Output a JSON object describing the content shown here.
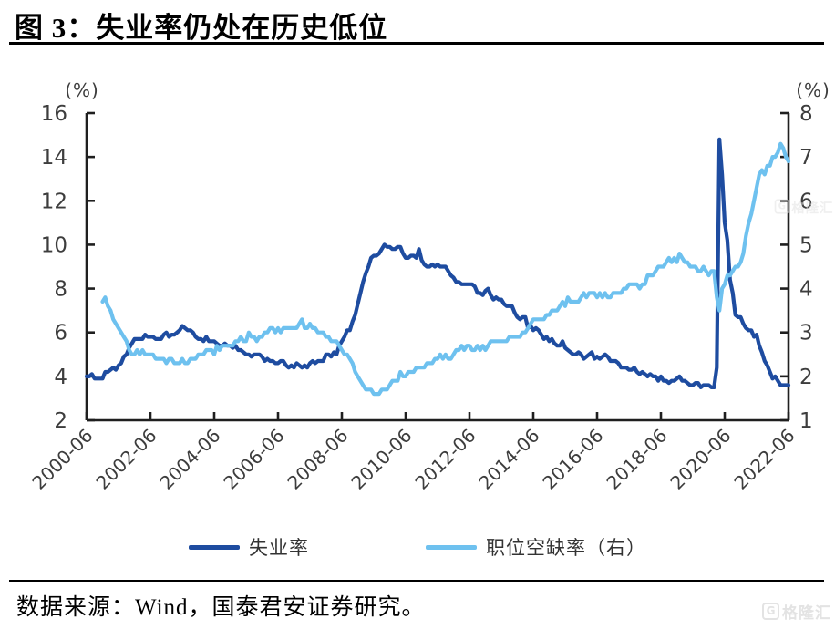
{
  "header": {
    "title": "图 3：失业率仍处在历史低位"
  },
  "source": {
    "text": "数据来源：Wind，国泰君安证券研究。"
  },
  "watermark": {
    "icon_letter": "G",
    "text": "格隆汇"
  },
  "legend": {
    "position": "bottom"
  },
  "chart_data": {
    "type": "line",
    "grid": false,
    "plot_background": "#ffffff",
    "axis_color": "#1f1f1f",
    "tick_label_color": "#3d3d3d",
    "left_axis": {
      "unit": "(%)",
      "min": 2,
      "max": 16,
      "ticks": [
        16,
        14,
        12,
        10,
        8,
        6,
        4,
        2
      ]
    },
    "right_axis": {
      "unit": "(%)",
      "min": 1,
      "max": 8,
      "ticks": [
        8,
        7,
        6,
        5,
        4,
        3,
        2,
        1
      ]
    },
    "x_axis": {
      "start": "2000-06",
      "end": "2022-06",
      "tick_interval_months": 24,
      "tick_labels": [
        "2000-06",
        "2002-06",
        "2004-06",
        "2006-06",
        "2008-06",
        "2010-06",
        "2012-06",
        "2014-06",
        "2016-06",
        "2018-06",
        "2020-06",
        "2022-06"
      ]
    },
    "series": [
      {
        "name": "失业率",
        "axis": "left",
        "color": "#1e4ca0",
        "start": "2000-06",
        "frequency": "monthly",
        "values": [
          4.0,
          4.0,
          4.1,
          3.9,
          3.9,
          3.9,
          3.9,
          4.2,
          4.2,
          4.3,
          4.4,
          4.3,
          4.5,
          4.6,
          4.9,
          5.0,
          5.3,
          5.5,
          5.7,
          5.7,
          5.7,
          5.7,
          5.9,
          5.8,
          5.8,
          5.8,
          5.7,
          5.7,
          5.7,
          5.9,
          6.0,
          5.8,
          5.9,
          5.9,
          6.0,
          6.1,
          6.3,
          6.2,
          6.1,
          6.1,
          6.0,
          5.8,
          5.7,
          5.7,
          5.6,
          5.8,
          5.6,
          5.6,
          5.6,
          5.5,
          5.4,
          5.4,
          5.5,
          5.4,
          5.4,
          5.3,
          5.4,
          5.2,
          5.2,
          5.1,
          5.0,
          5.0,
          4.9,
          5.0,
          5.0,
          5.0,
          4.9,
          4.7,
          4.8,
          4.7,
          4.7,
          4.6,
          4.6,
          4.7,
          4.7,
          4.5,
          4.4,
          4.5,
          4.4,
          4.6,
          4.5,
          4.4,
          4.5,
          4.4,
          4.6,
          4.7,
          4.6,
          4.7,
          4.7,
          4.7,
          5.0,
          5.0,
          4.9,
          5.1,
          5.0,
          5.4,
          5.6,
          5.8,
          6.1,
          6.1,
          6.5,
          6.8,
          7.3,
          7.8,
          8.3,
          8.7,
          9.0,
          9.4,
          9.5,
          9.5,
          9.6,
          9.8,
          10.0,
          9.9,
          9.9,
          9.8,
          9.8,
          9.9,
          9.9,
          9.6,
          9.4,
          9.4,
          9.5,
          9.5,
          9.4,
          9.8,
          9.3,
          9.1,
          9.0,
          9.0,
          9.1,
          9.0,
          9.1,
          9.0,
          9.0,
          9.0,
          8.8,
          8.6,
          8.5,
          8.3,
          8.3,
          8.2,
          8.2,
          8.2,
          8.2,
          8.2,
          8.1,
          7.8,
          7.8,
          7.7,
          7.9,
          8.0,
          7.7,
          7.5,
          7.6,
          7.5,
          7.5,
          7.3,
          7.2,
          7.2,
          7.2,
          6.9,
          6.7,
          6.6,
          6.7,
          6.7,
          6.2,
          6.3,
          6.1,
          6.2,
          6.1,
          5.9,
          5.7,
          5.8,
          5.6,
          5.7,
          5.5,
          5.4,
          5.4,
          5.6,
          5.3,
          5.2,
          5.1,
          5.0,
          5.0,
          5.1,
          5.0,
          4.8,
          4.9,
          5.0,
          5.1,
          4.8,
          4.9,
          4.8,
          4.9,
          5.0,
          4.9,
          4.7,
          4.7,
          4.7,
          4.6,
          4.4,
          4.4,
          4.4,
          4.3,
          4.3,
          4.4,
          4.2,
          4.1,
          4.2,
          4.1,
          4.0,
          4.1,
          4.0,
          4.0,
          3.8,
          4.0,
          3.8,
          3.8,
          3.7,
          3.8,
          3.8,
          3.9,
          4.0,
          3.8,
          3.8,
          3.7,
          3.6,
          3.6,
          3.7,
          3.7,
          3.5,
          3.6,
          3.6,
          3.6,
          3.5,
          3.5,
          4.4,
          14.8,
          13.2,
          11.0,
          10.2,
          8.4,
          7.8,
          6.8,
          6.7,
          6.7,
          6.4,
          6.2,
          6.1,
          6.1,
          5.8,
          5.9,
          5.4,
          5.1,
          4.7,
          4.5,
          4.2,
          3.9,
          4.0,
          3.8,
          3.6,
          3.6,
          3.6,
          3.6
        ]
      },
      {
        "name": "职位空缺率（右）",
        "axis": "right",
        "color": "#6ec1ef",
        "start": "2000-12",
        "frequency": "monthly",
        "values": [
          3.7,
          3.8,
          3.6,
          3.5,
          3.3,
          3.2,
          3.1,
          3.0,
          2.9,
          2.8,
          2.6,
          2.5,
          2.5,
          2.6,
          2.5,
          2.6,
          2.5,
          2.5,
          2.5,
          2.5,
          2.4,
          2.4,
          2.4,
          2.4,
          2.3,
          2.4,
          2.4,
          2.3,
          2.3,
          2.3,
          2.4,
          2.3,
          2.3,
          2.4,
          2.4,
          2.4,
          2.5,
          2.5,
          2.5,
          2.6,
          2.6,
          2.6,
          2.5,
          2.7,
          2.6,
          2.7,
          2.7,
          2.7,
          2.7,
          2.7,
          2.8,
          2.8,
          2.9,
          2.8,
          2.8,
          3.0,
          2.9,
          2.9,
          2.8,
          2.9,
          2.9,
          3.0,
          3.0,
          3.1,
          3.1,
          3.0,
          3.1,
          3.0,
          3.1,
          3.1,
          3.1,
          3.1,
          3.1,
          3.1,
          3.2,
          3.3,
          3.1,
          3.1,
          3.2,
          3.1,
          3.1,
          3.0,
          3.0,
          3.0,
          2.9,
          2.9,
          2.8,
          2.8,
          2.8,
          2.7,
          2.6,
          2.5,
          2.5,
          2.4,
          2.3,
          2.1,
          2.0,
          1.9,
          1.8,
          1.7,
          1.7,
          1.7,
          1.6,
          1.6,
          1.6,
          1.7,
          1.7,
          1.7,
          1.8,
          1.9,
          1.9,
          1.9,
          2.1,
          2.0,
          2.0,
          2.1,
          2.1,
          2.1,
          2.2,
          2.2,
          2.2,
          2.2,
          2.3,
          2.3,
          2.3,
          2.4,
          2.4,
          2.5,
          2.4,
          2.5,
          2.4,
          2.4,
          2.5,
          2.6,
          2.6,
          2.7,
          2.6,
          2.7,
          2.7,
          2.6,
          2.6,
          2.7,
          2.6,
          2.7,
          2.6,
          2.7,
          2.8,
          2.8,
          2.8,
          2.8,
          2.8,
          2.8,
          2.8,
          2.9,
          2.9,
          2.9,
          2.9,
          2.9,
          3.0,
          3.0,
          3.1,
          3.2,
          3.3,
          3.3,
          3.3,
          3.3,
          3.3,
          3.4,
          3.4,
          3.5,
          3.5,
          3.5,
          3.6,
          3.7,
          3.6,
          3.8,
          3.7,
          3.7,
          3.7,
          3.7,
          3.8,
          3.9,
          3.8,
          3.9,
          3.9,
          3.9,
          3.8,
          3.9,
          3.8,
          3.9,
          3.8,
          3.8,
          3.9,
          3.9,
          3.9,
          3.9,
          4.0,
          4.0,
          4.1,
          4.1,
          4.1,
          4.1,
          4.0,
          4.1,
          4.1,
          4.3,
          4.3,
          4.3,
          4.4,
          4.5,
          4.5,
          4.5,
          4.6,
          4.7,
          4.6,
          4.7,
          4.6,
          4.8,
          4.7,
          4.6,
          4.6,
          4.5,
          4.5,
          4.5,
          4.4,
          4.4,
          4.5,
          4.4,
          4.3,
          4.4,
          4.4,
          3.8,
          3.5,
          4.0,
          4.1,
          4.3,
          4.3,
          4.4,
          4.5,
          4.5,
          4.6,
          4.8,
          5.2,
          5.5,
          5.7,
          6.0,
          6.3,
          6.6,
          6.7,
          6.6,
          6.8,
          6.8,
          7.0,
          7.0,
          7.1,
          7.3,
          7.2,
          7.0,
          6.9
        ]
      }
    ]
  }
}
